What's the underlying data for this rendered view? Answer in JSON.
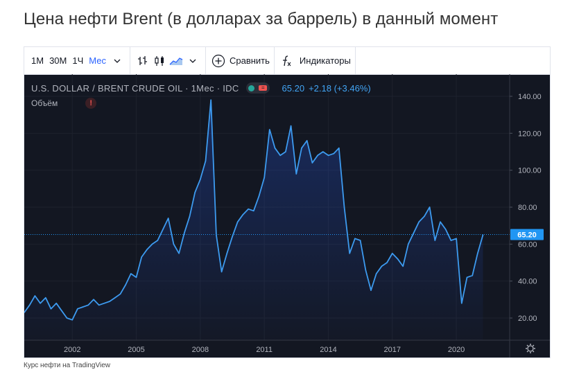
{
  "page": {
    "title": "Цена нефти Brent (в долларах за баррель) в данный момент",
    "footer": "Курс нефти на TradingView"
  },
  "toolbar": {
    "intervals": [
      "1М",
      "30М",
      "1Ч",
      "Мес"
    ],
    "active_interval": "Мес",
    "compare_label": "Сравнить",
    "indicators_label": "Индикаторы",
    "icons": [
      "chevron-down-icon",
      "bar-style-icon",
      "candle-style-icon",
      "area-style-icon",
      "chevron-down-icon",
      "plus-circle-icon",
      "fx-icon"
    ]
  },
  "legend": {
    "symbol": "U.S. DOLLAR / BRENT CRUDE OIL · 1Мес · IDC",
    "price": "65.20",
    "change": "+2.18 (+3.46%)",
    "volume_label": "Объём",
    "warning_glyph": "!"
  },
  "colors": {
    "background": "#131722",
    "line": "#3d9bf0",
    "accent": "#2962ff",
    "price_tag": "#2196f3"
  },
  "chart_data": {
    "type": "area",
    "title": "U.S. DOLLAR / BRENT CRUDE OIL",
    "x_ticks": [
      "2002",
      "2005",
      "2008",
      "2011",
      "2014",
      "2017",
      "2020"
    ],
    "y_ticks": [
      "20.00",
      "40.00",
      "60.00",
      "80.00",
      "100.00",
      "120.00",
      "140.00"
    ],
    "ylim": [
      8,
      152
    ],
    "xlim": [
      1999.75,
      2022.5
    ],
    "last_price_label": "65.20",
    "series": [
      {
        "x": [
          1999.75,
          2000.0,
          2000.25,
          2000.5,
          2000.75,
          2001.0,
          2001.25,
          2001.5,
          2001.75,
          2002.0,
          2002.25,
          2002.5,
          2002.75,
          2003.0,
          2003.25,
          2003.5,
          2003.75,
          2004.0,
          2004.25,
          2004.5,
          2004.75,
          2005.0,
          2005.25,
          2005.5,
          2005.75,
          2006.0,
          2006.25,
          2006.5,
          2006.75,
          2007.0,
          2007.25,
          2007.5,
          2007.75,
          2008.0,
          2008.25,
          2008.5,
          2008.75,
          2009.0,
          2009.25,
          2009.5,
          2009.75,
          2010.0,
          2010.25,
          2010.5,
          2010.75,
          2011.0,
          2011.25,
          2011.5,
          2011.75,
          2012.0,
          2012.25,
          2012.5,
          2012.75,
          2013.0,
          2013.25,
          2013.5,
          2013.75,
          2014.0,
          2014.25,
          2014.5,
          2014.75,
          2015.0,
          2015.25,
          2015.5,
          2015.75,
          2016.0,
          2016.25,
          2016.5,
          2016.75,
          2017.0,
          2017.25,
          2017.5,
          2017.75,
          2018.0,
          2018.25,
          2018.5,
          2018.75,
          2019.0,
          2019.25,
          2019.5,
          2019.75,
          2020.0,
          2020.25,
          2020.5,
          2020.75,
          2021.0,
          2021.25
        ],
        "y": [
          23,
          27,
          32,
          28,
          31,
          25,
          28,
          24,
          20,
          19,
          25,
          26,
          27,
          30,
          27,
          28,
          29,
          31,
          33,
          38,
          44,
          42,
          53,
          57,
          60,
          62,
          68,
          74,
          60,
          55,
          66,
          75,
          88,
          95,
          105,
          138,
          65,
          45,
          55,
          64,
          72,
          76,
          79,
          78,
          86,
          96,
          122,
          112,
          108,
          110,
          124,
          98,
          112,
          116,
          104,
          108,
          110,
          108,
          109,
          112,
          80,
          55,
          63,
          62,
          46,
          35,
          44,
          48,
          50,
          55,
          52,
          48,
          60,
          66,
          72,
          75,
          80,
          62,
          72,
          68,
          62,
          63,
          28,
          42,
          43,
          55,
          65
        ]
      }
    ]
  }
}
